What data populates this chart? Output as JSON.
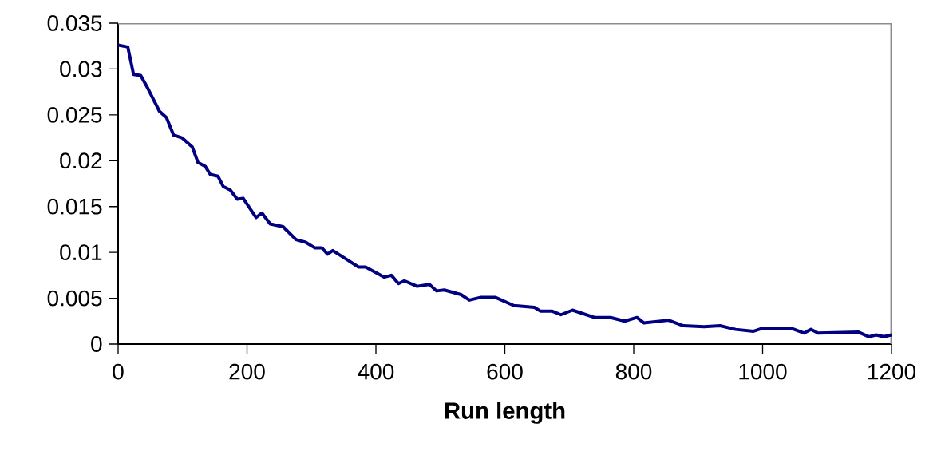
{
  "chart_data": {
    "type": "line",
    "xlabel": "Run length",
    "x": [
      0,
      15,
      24,
      35,
      46,
      64,
      75,
      86,
      99,
      115,
      124,
      135,
      143,
      155,
      163,
      174,
      185,
      194,
      214,
      223,
      236,
      256,
      276,
      291,
      305,
      316,
      325,
      333,
      353,
      373,
      384,
      400,
      413,
      424,
      435,
      444,
      464,
      483,
      494,
      506,
      532,
      545,
      563,
      585,
      614,
      646,
      655,
      673,
      687,
      705,
      739,
      764,
      786,
      805,
      816,
      854,
      877,
      909,
      934,
      958,
      986,
      999,
      1026,
      1045,
      1064,
      1075,
      1086,
      1149,
      1165,
      1176,
      1188,
      1200
    ],
    "values": [
      0.0326,
      0.0324,
      0.0294,
      0.0293,
      0.0279,
      0.0254,
      0.0247,
      0.0228,
      0.0225,
      0.0215,
      0.0198,
      0.0194,
      0.0185,
      0.0183,
      0.0172,
      0.0168,
      0.0158,
      0.0159,
      0.0138,
      0.0143,
      0.0131,
      0.0128,
      0.0114,
      0.0111,
      0.0105,
      0.0105,
      0.0098,
      0.0102,
      0.0093,
      0.0084,
      0.0084,
      0.0078,
      0.0073,
      0.0075,
      0.0066,
      0.0069,
      0.0063,
      0.0065,
      0.0058,
      0.0059,
      0.0054,
      0.0048,
      0.0051,
      0.0051,
      0.0042,
      0.004,
      0.0036,
      0.0036,
      0.0032,
      0.0037,
      0.0029,
      0.0029,
      0.0025,
      0.0029,
      0.0023,
      0.0026,
      0.002,
      0.0019,
      0.002,
      0.0016,
      0.0014,
      0.0017,
      0.0017,
      0.0017,
      0.0012,
      0.0016,
      0.0012,
      0.0013,
      0.0008,
      0.001,
      0.0008,
      0.001
    ],
    "color": "#000080",
    "marker": "none",
    "line_style": "solid",
    "grid": false,
    "xlim": [
      0,
      1200
    ],
    "ylim": [
      0,
      0.035
    ],
    "xticks": [
      0,
      200,
      400,
      600,
      800,
      1000,
      1200
    ],
    "yticks": [
      0,
      0.005,
      0.01,
      0.015,
      0.02,
      0.025,
      0.03,
      0.035
    ]
  }
}
